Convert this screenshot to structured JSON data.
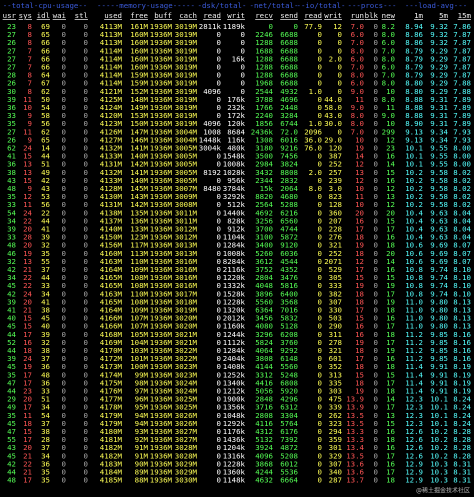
{
  "header": {
    "groups": [
      "--total-cpu-usage--",
      "-----memory-usage-----",
      "-dsk/total-",
      "-net/total-",
      "--io/total-",
      "---procs---",
      "---load-avg---"
    ],
    "columns": [
      "usr",
      "sys",
      "idl",
      "wai",
      "stl",
      "used",
      "free",
      "buff",
      "cach",
      "read",
      "writ",
      "recv",
      "send",
      "read",
      "writ",
      "run",
      "blk",
      "new",
      "1m",
      "5m",
      "15m"
    ]
  },
  "rows": [
    [
      "23",
      "8",
      "69",
      "0",
      "0",
      "4113M",
      "161M",
      "1936M",
      "3019M",
      "2811k",
      "1189k",
      "0",
      "0",
      "77.9",
      "12",
      "7.0",
      "0",
      "8.2",
      "8.94",
      "9.32",
      "7.86"
    ],
    [
      "27",
      "8",
      "65",
      "0",
      "0",
      "4113M",
      "160M",
      "1936M",
      "3019M",
      "0",
      "0",
      "2246",
      "6688",
      "0",
      "0",
      "6.0",
      "0",
      "8.0",
      "8.86",
      "9.32",
      "7.87"
    ],
    [
      "26",
      "8",
      "66",
      "0",
      "0",
      "4113M",
      "160M",
      "1936M",
      "3019M",
      "0",
      "0",
      "1288",
      "6688",
      "0",
      "0",
      "7.0",
      "0",
      "6.0",
      "8.86",
      "9.32",
      "7.87"
    ],
    [
      "27",
      "7",
      "66",
      "0",
      "0",
      "4114M",
      "160M",
      "1936M",
      "3019M",
      "0",
      "0",
      "1688",
      "6688",
      "0",
      "0",
      "8.0",
      "0",
      "7.0",
      "8.79",
      "9.29",
      "7.87"
    ],
    [
      "27",
      "7",
      "66",
      "0",
      "0",
      "4114M",
      "160M",
      "1936M",
      "3019M",
      "0",
      "16k",
      "1288",
      "6688",
      "0",
      "2.0",
      "6.0",
      "0",
      "8.0",
      "8.79",
      "9.29",
      "7.87"
    ],
    [
      "27",
      "7",
      "66",
      "0",
      "0",
      "4114M",
      "160M",
      "1936M",
      "3019M",
      "0",
      "0",
      "1288",
      "6688",
      "0",
      "0",
      "7.0",
      "0",
      "6.0",
      "8.79",
      "9.29",
      "7.87"
    ],
    [
      "28",
      "8",
      "64",
      "0",
      "0",
      "4114M",
      "159M",
      "1936M",
      "3019M",
      "0",
      "0",
      "1288",
      "6688",
      "0",
      "0",
      "8.0",
      "0",
      "7.0",
      "8.79",
      "9.29",
      "7.87"
    ],
    [
      "26",
      "7",
      "67",
      "0",
      "0",
      "4114M",
      "159M",
      "1936M",
      "3019M",
      "0",
      "0",
      "1968",
      "6688",
      "0",
      "0",
      "6.0",
      "0",
      "8.0",
      "8.80",
      "9.29",
      "7.88"
    ],
    [
      "30",
      "8",
      "62",
      "0",
      "0",
      "4121M",
      "152M",
      "1936M",
      "3019M",
      "4096",
      "0",
      "2544",
      "4932",
      "1.0",
      "0",
      "9.0",
      "0",
      "10",
      "8.80",
      "9.29",
      "7.88"
    ],
    [
      "39",
      "11",
      "50",
      "0",
      "0",
      "4125M",
      "148M",
      "1936M",
      "3019M",
      "0",
      "176k",
      "3788",
      "4696",
      "0",
      "44.0",
      "11",
      "0",
      "8.0",
      "8.88",
      "9.31",
      "7.89"
    ],
    [
      "36",
      "10",
      "54",
      "0",
      "0",
      "4124M",
      "149M",
      "1936M",
      "3019M",
      "0",
      "232k",
      "1766",
      "2448",
      "0",
      "58.0",
      "9.0",
      "0",
      "11",
      "8.88",
      "9.31",
      "7.89"
    ],
    [
      "33",
      "9",
      "58",
      "0",
      "0",
      "4120M",
      "153M",
      "1936M",
      "3019M",
      "0",
      "172k",
      "2240",
      "3284",
      "0",
      "43.0",
      "8.0",
      "0",
      "9.0",
      "8.88",
      "9.31",
      "7.89"
    ],
    [
      "35",
      "9",
      "56",
      "0",
      "0",
      "4123M",
      "150M",
      "1936M",
      "3019M",
      "4096",
      "120k",
      "1856",
      "6744",
      "1.0",
      "30.0",
      "8.0",
      "0",
      "10",
      "8.90",
      "9.31",
      "7.89"
    ],
    [
      "27",
      "11",
      "62",
      "0",
      "0",
      "4126M",
      "147M",
      "1936M",
      "3004M",
      "1008",
      "8684",
      "2436k",
      "72.0",
      "2096",
      "0",
      "7.0",
      "0",
      "299",
      "9.13",
      "9.34",
      "7.93"
    ],
    [
      "26",
      "9",
      "65",
      "0",
      "0",
      "4127M",
      "146M",
      "1936M",
      "3004M",
      "1448k",
      "116k",
      "1308",
      "6016",
      "36.0",
      "29.0",
      "10",
      "0",
      "12",
      "9.13",
      "9.34",
      "7.93"
    ],
    [
      "62",
      "24",
      "14",
      "0",
      "0",
      "4132M",
      "141M",
      "1936M",
      "3005M",
      "3004k",
      "480k",
      "3180",
      "9216",
      "76.0",
      "120",
      "19",
      "0",
      "23",
      "10.1",
      "9.55",
      "8.00"
    ],
    [
      "41",
      "15",
      "44",
      "0",
      "0",
      "4133M",
      "140M",
      "1936M",
      "3005M",
      "0",
      "1548k",
      "3500",
      "7456",
      "0",
      "387",
      "14",
      "0",
      "16",
      "10.1",
      "9.55",
      "8.00"
    ],
    [
      "36",
      "13",
      "51",
      "0",
      "0",
      "4131M",
      "142M",
      "1936M",
      "3005M",
      "0",
      "1008k",
      "2984",
      "3824",
      "0",
      "252",
      "12",
      "0",
      "14",
      "10.1",
      "9.55",
      "8.00"
    ],
    [
      "38",
      "13",
      "49",
      "0",
      "0",
      "4132M",
      "141M",
      "1936M",
      "3005M",
      "8192",
      "1028k",
      "3432",
      "8808",
      "2.0",
      "257",
      "13",
      "0",
      "15",
      "10.2",
      "9.58",
      "8.02"
    ],
    [
      "43",
      "15",
      "42",
      "0",
      "0",
      "4133M",
      "140M",
      "1936M",
      "3005M",
      "0",
      "956k",
      "2344",
      "2832",
      "0",
      "239",
      "12",
      "0",
      "16",
      "10.2",
      "9.58",
      "8.02"
    ],
    [
      "48",
      "9",
      "43",
      "0",
      "0",
      "4128M",
      "145M",
      "1936M",
      "3007M",
      "8480",
      "3784k",
      "15k",
      "2064",
      "8.0",
      "3.0",
      "10",
      "0",
      "12",
      "10.2",
      "9.58",
      "8.02"
    ],
    [
      "35",
      "12",
      "53",
      "0",
      "0",
      "4130M",
      "143M",
      "1936M",
      "3009M",
      "0",
      "3292k",
      "8820",
      "4680",
      "0",
      "823",
      "11",
      "0",
      "13",
      "10.2",
      "9.58",
      "8.02"
    ],
    [
      "33",
      "11",
      "56",
      "0",
      "0",
      "4131M",
      "142M",
      "1936M",
      "3008M",
      "0",
      "512k",
      "2564",
      "5288",
      "0",
      "128",
      "10",
      "0",
      "12",
      "10.2",
      "9.58",
      "8.02"
    ],
    [
      "54",
      "24",
      "22",
      "0",
      "0",
      "4138M",
      "135M",
      "1936M",
      "3011M",
      "0",
      "1440k",
      "4692",
      "6216",
      "0",
      "360",
      "20",
      "0",
      "20",
      "10.4",
      "9.63",
      "8.04"
    ],
    [
      "34",
      "22",
      "44",
      "0",
      "0",
      "4137M",
      "136M",
      "1936M",
      "3011M",
      "0",
      "828k",
      "3256",
      "6560",
      "0",
      "207",
      "16",
      "0",
      "15",
      "10.4",
      "9.63",
      "8.04"
    ],
    [
      "39",
      "20",
      "41",
      "0",
      "0",
      "4140M",
      "133M",
      "1936M",
      "3012M",
      "0",
      "912k",
      "3700",
      "4744",
      "0",
      "228",
      "17",
      "0",
      "17",
      "10.4",
      "9.63",
      "8.04"
    ],
    [
      "33",
      "28",
      "39",
      "0",
      "0",
      "4150M",
      "123M",
      "1936M",
      "3012M",
      "0",
      "1104k",
      "3100",
      "5872",
      "0",
      "276",
      "18",
      "0",
      "16",
      "10.4",
      "9.63",
      "8.04"
    ],
    [
      "48",
      "20",
      "32",
      "0",
      "0",
      "4156M",
      "117M",
      "1936M",
      "3013M",
      "0",
      "1284k",
      "3400",
      "9120",
      "0",
      "321",
      "19",
      "0",
      "18",
      "10.6",
      "9.69",
      "8.07"
    ],
    [
      "46",
      "19",
      "35",
      "0",
      "0",
      "4160M",
      "113M",
      "1936M",
      "3013M",
      "0",
      "1008k",
      "5260",
      "6036",
      "0",
      "252",
      "18",
      "0",
      "20",
      "10.6",
      "9.69",
      "8.07"
    ],
    [
      "32",
      "13",
      "55",
      "0",
      "0",
      "4163M",
      "110M",
      "1936M",
      "3016M",
      "0",
      "8284k",
      "3612",
      "4544",
      "0",
      "2071",
      "12",
      "0",
      "14",
      "10.6",
      "9.69",
      "8.07"
    ],
    [
      "42",
      "21",
      "37",
      "0",
      "0",
      "4164M",
      "109M",
      "1936M",
      "3016M",
      "0",
      "2116k",
      "3752",
      "4352",
      "0",
      "529",
      "17",
      "0",
      "16",
      "10.8",
      "9.74",
      "8.10"
    ],
    [
      "34",
      "22",
      "44",
      "0",
      "0",
      "4165M",
      "108M",
      "1936M",
      "3016M",
      "0",
      "1220k",
      "2804",
      "3476",
      "0",
      "305",
      "15",
      "0",
      "15",
      "10.8",
      "9.74",
      "8.10"
    ],
    [
      "45",
      "22",
      "33",
      "0",
      "0",
      "4165M",
      "108M",
      "1936M",
      "3016M",
      "0",
      "1332k",
      "4048",
      "5816",
      "0",
      "333",
      "19",
      "0",
      "19",
      "10.8",
      "9.74",
      "8.10"
    ],
    [
      "42",
      "24",
      "34",
      "0",
      "0",
      "4163M",
      "110M",
      "1936M",
      "3017M",
      "0",
      "1528k",
      "3896",
      "6400",
      "0",
      "382",
      "18",
      "0",
      "17",
      "10.8",
      "9.74",
      "8.10"
    ],
    [
      "39",
      "20",
      "41",
      "0",
      "0",
      "4165M",
      "108M",
      "1936M",
      "3018M",
      "0",
      "1228k",
      "5560",
      "3568",
      "0",
      "307",
      "18",
      "0",
      "19",
      "11.0",
      "9.80",
      "8.13"
    ],
    [
      "41",
      "21",
      "38",
      "0",
      "0",
      "4164M",
      "109M",
      "1936M",
      "3019M",
      "0",
      "1320k",
      "6364",
      "7016",
      "0",
      "330",
      "17",
      "0",
      "18",
      "11.0",
      "9.80",
      "8.13"
    ],
    [
      "40",
      "15",
      "45",
      "0",
      "0",
      "4166M",
      "107M",
      "1936M",
      "3020M",
      "0",
      "2012k",
      "3456",
      "5832",
      "0",
      "503",
      "15",
      "0",
      "16",
      "11.0",
      "9.80",
      "8.13"
    ],
    [
      "45",
      "15",
      "40",
      "0",
      "0",
      "4166M",
      "107M",
      "1936M",
      "3020M",
      "0",
      "1160k",
      "4080",
      "5128",
      "0",
      "290",
      "16",
      "0",
      "17",
      "11.0",
      "9.80",
      "8.13"
    ],
    [
      "44",
      "17",
      "39",
      "0",
      "0",
      "4168M",
      "105M",
      "1936M",
      "3021M",
      "0",
      "1244k",
      "3296",
      "6208",
      "0",
      "311",
      "16",
      "0",
      "18",
      "11.2",
      "9.85",
      "8.16"
    ],
    [
      "52",
      "16",
      "32",
      "0",
      "0",
      "4169M",
      "104M",
      "1936M",
      "3021M",
      "0",
      "1112k",
      "5824",
      "3760",
      "0",
      "278",
      "19",
      "0",
      "17",
      "11.2",
      "9.85",
      "8.16"
    ],
    [
      "44",
      "18",
      "38",
      "0",
      "0",
      "4170M",
      "103M",
      "1936M",
      "3022M",
      "0",
      "1284k",
      "4064",
      "9292",
      "0",
      "321",
      "18",
      "0",
      "19",
      "11.2",
      "9.85",
      "8.16"
    ],
    [
      "39",
      "24",
      "37",
      "0",
      "0",
      "4172M",
      "101M",
      "1936M",
      "3022M",
      "0",
      "2404k",
      "3808",
      "6148",
      "0",
      "601",
      "17",
      "0",
      "16",
      "11.2",
      "9.85",
      "8.16"
    ],
    [
      "45",
      "19",
      "36",
      "0",
      "0",
      "4173M",
      "100M",
      "1936M",
      "3023M",
      "0",
      "1408k",
      "4144",
      "5560",
      "0",
      "352",
      "18",
      "0",
      "18",
      "11.4",
      "9.91",
      "8.19"
    ],
    [
      "35",
      "17",
      "48",
      "0",
      "0",
      "4174M",
      "99M",
      "1936M",
      "3023M",
      "0",
      "1252k",
      "3312",
      "5248",
      "0",
      "313",
      "15",
      "0",
      "15",
      "11.4",
      "9.91",
      "8.19"
    ],
    [
      "47",
      "17",
      "36",
      "0",
      "0",
      "4175M",
      "98M",
      "1936M",
      "3024M",
      "0",
      "1340k",
      "4416",
      "6808",
      "0",
      "335",
      "18",
      "0",
      "17",
      "11.4",
      "9.91",
      "8.19"
    ],
    [
      "44",
      "23",
      "33",
      "0",
      "0",
      "4176M",
      "97M",
      "1936M",
      "3024M",
      "0",
      "1212k",
      "5056",
      "5920",
      "0",
      "303",
      "19",
      "0",
      "18",
      "11.4",
      "9.91",
      "8.19"
    ],
    [
      "29",
      "20",
      "51",
      "0",
      "0",
      "4177M",
      "96M",
      "1936M",
      "3025M",
      "0",
      "1900k",
      "2848",
      "4296",
      "0",
      "475",
      "13.9",
      "0",
      "14",
      "12.3",
      "10.1",
      "8.24"
    ],
    [
      "49",
      "17",
      "34",
      "0",
      "0",
      "4178M",
      "95M",
      "1936M",
      "3025M",
      "0",
      "1356k",
      "3716",
      "6312",
      "0",
      "339",
      "13.9",
      "0",
      "17",
      "12.3",
      "10.1",
      "8.24"
    ],
    [
      "35",
      "11",
      "54",
      "0",
      "0",
      "4179M",
      "94M",
      "1936M",
      "3026M",
      "0",
      "1048k",
      "2808",
      "3304",
      "0",
      "262",
      "13.5",
      "0",
      "13",
      "12.3",
      "10.1",
      "8.24"
    ],
    [
      "45",
      "18",
      "37",
      "0",
      "0",
      "4179M",
      "94M",
      "1936M",
      "3026M",
      "0",
      "1292k",
      "4116",
      "5764",
      "0",
      "323",
      "13.5",
      "0",
      "15",
      "12.3",
      "10.1",
      "8.24"
    ],
    [
      "47",
      "15",
      "38",
      "0",
      "0",
      "4180M",
      "93M",
      "1936M",
      "3027M",
      "0",
      "1176k",
      "4312",
      "6176",
      "0",
      "294",
      "13.3",
      "0",
      "16",
      "12.6",
      "10.2",
      "8.28"
    ],
    [
      "55",
      "17",
      "28",
      "0",
      "0",
      "4181M",
      "92M",
      "1936M",
      "3027M",
      "0",
      "1436k",
      "5132",
      "7392",
      "0",
      "359",
      "13.3",
      "0",
      "18",
      "12.6",
      "10.2",
      "8.28"
    ],
    [
      "43",
      "20",
      "37",
      "0",
      "0",
      "4182M",
      "91M",
      "1936M",
      "3028M",
      "0",
      "1204k",
      "3924",
      "4872",
      "0",
      "301",
      "13.4",
      "0",
      "16",
      "12.6",
      "10.2",
      "8.28"
    ],
    [
      "45",
      "21",
      "34",
      "0",
      "0",
      "4182M",
      "91M",
      "1936M",
      "3028M",
      "0",
      "1316k",
      "4096",
      "5208",
      "0",
      "329",
      "13.5",
      "0",
      "17",
      "12.6",
      "10.2",
      "8.28"
    ],
    [
      "42",
      "22",
      "36",
      "0",
      "0",
      "4183M",
      "90M",
      "1936M",
      "3029M",
      "0",
      "1228k",
      "3868",
      "6012",
      "0",
      "307",
      "13.6",
      "0",
      "16",
      "12.9",
      "10.3",
      "8.31"
    ],
    [
      "44",
      "21",
      "35",
      "0",
      "0",
      "4184M",
      "89M",
      "1936M",
      "3029M",
      "0",
      "1360k",
      "4244",
      "5536",
      "0",
      "340",
      "13.6",
      "0",
      "17",
      "12.9",
      "10.3",
      "8.31"
    ],
    [
      "48",
      "17",
      "35",
      "0",
      "0",
      "4185M",
      "88M",
      "1936M",
      "3030M",
      "0",
      "1148k",
      "4632",
      "6664",
      "0",
      "287",
      "13.7",
      "0",
      "18",
      "12.9",
      "10.3",
      "8.31"
    ]
  ],
  "watermark": "@稀土掘金技术社区"
}
